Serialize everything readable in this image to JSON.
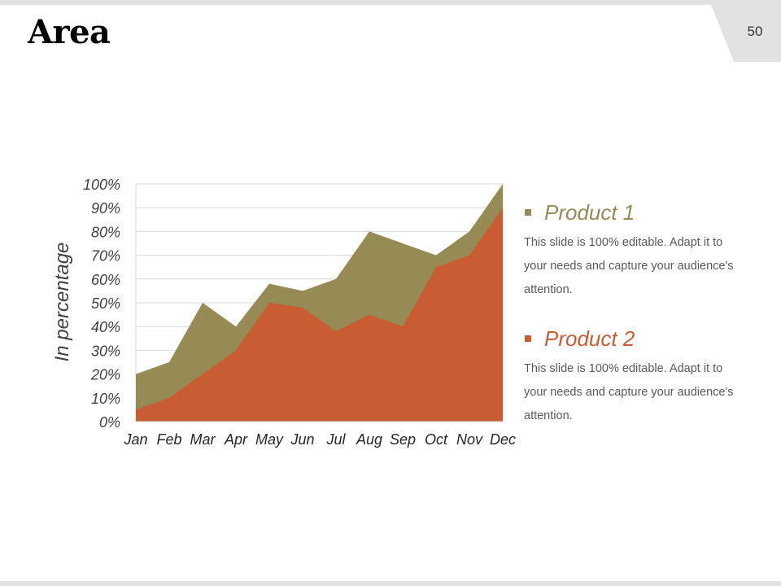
{
  "slide": {
    "title": "Area",
    "page_number": "50"
  },
  "legend": [
    {
      "name": "Product 1",
      "color": "#968a55",
      "description": "This slide is 100% editable. Adapt it to your needs and capture your audience's attention."
    },
    {
      "name": "Product 2",
      "color": "#c85c33",
      "description": "This slide is 100% editable. Adapt it to your needs and capture your audience's attention."
    }
  ],
  "chart_data": {
    "type": "area",
    "title": "",
    "xlabel": "",
    "ylabel": "In percentage",
    "categories": [
      "Jan",
      "Feb",
      "Mar",
      "Apr",
      "May",
      "Jun",
      "Jul",
      "Aug",
      "Sep",
      "Oct",
      "Nov",
      "Dec"
    ],
    "y_ticks": [
      "0%",
      "10%",
      "20%",
      "30%",
      "40%",
      "50%",
      "60%",
      "70%",
      "80%",
      "90%",
      "100%"
    ],
    "ylim": [
      0,
      100
    ],
    "grid": true,
    "series": [
      {
        "name": "Product 1",
        "color": "#968a55",
        "values": [
          20,
          25,
          50,
          40,
          58,
          55,
          60,
          80,
          75,
          70,
          80,
          100
        ]
      },
      {
        "name": "Product 2",
        "color": "#c85c33",
        "values": [
          5,
          10,
          20,
          30,
          50,
          48,
          38,
          45,
          40,
          65,
          70,
          90
        ]
      }
    ]
  }
}
